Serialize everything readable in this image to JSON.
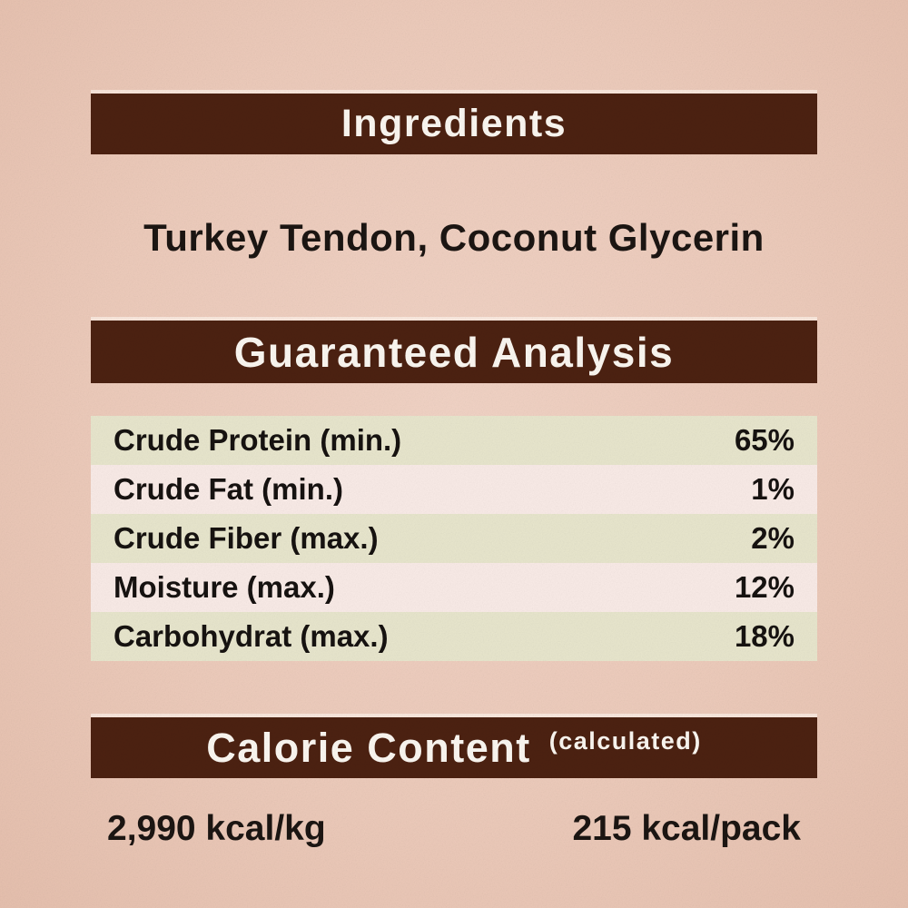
{
  "colors": {
    "background": "#edcbbb",
    "header_bar": "#4c2111",
    "header_text": "#fbf7f1",
    "body_text": "#1b1512",
    "row_green": "#e8e6cd",
    "row_pink": "#f9ebe7"
  },
  "ingredients": {
    "title": "Ingredients",
    "list": "Turkey Tendon, Coconut Glycerin"
  },
  "guaranteed_analysis": {
    "title": "Guaranteed Analysis",
    "rows": [
      {
        "label": "Crude Protein (min.)",
        "value": "65%"
      },
      {
        "label": "Crude Fat (min.)",
        "value": "1%"
      },
      {
        "label": "Crude Fiber (max.)",
        "value": "2%"
      },
      {
        "label": "Moisture (max.)",
        "value": "12%"
      },
      {
        "label": "Carbohydrat (max.)",
        "value": "18%"
      }
    ]
  },
  "calorie_content": {
    "title": "Calorie Content",
    "qualifier": "(calculated)",
    "per_kg": "2,990 kcal/kg",
    "per_pack": "215 kcal/pack"
  }
}
